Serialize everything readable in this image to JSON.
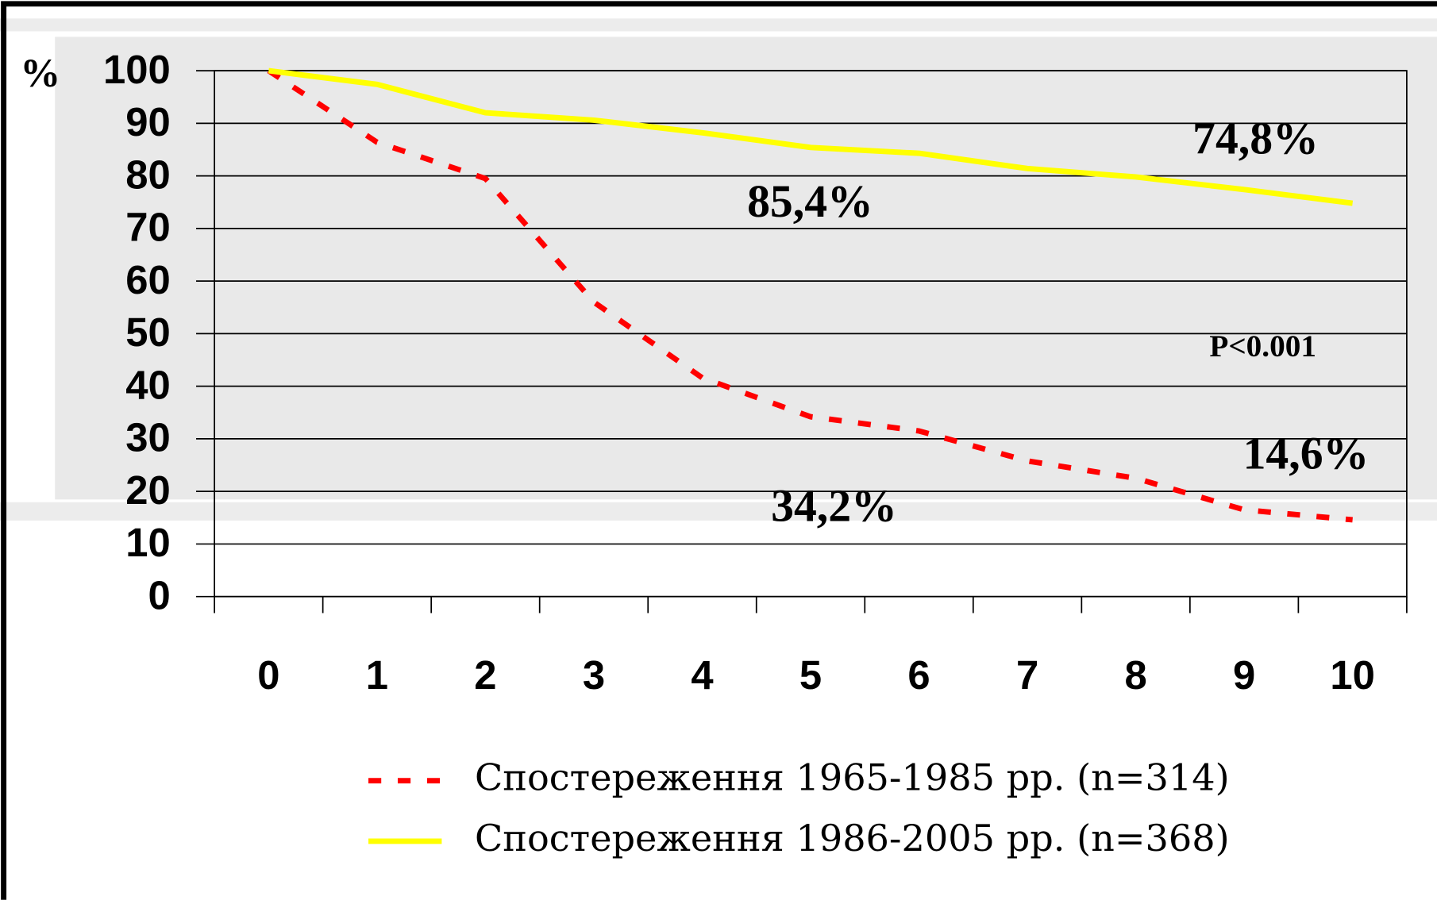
{
  "chart_data": {
    "type": "line",
    "y_label": "%",
    "categories": [
      "0",
      "1",
      "2",
      "3",
      "4",
      "5",
      "6",
      "7",
      "8",
      "9",
      "10"
    ],
    "series": [
      {
        "name": "Спостереження 1965-1985 рр. (n=314)",
        "color": "#ff0000",
        "dashed": true,
        "values": [
          100,
          86.4,
          79.5,
          56,
          41.6,
          34.2,
          31.5,
          25.8,
          22.5,
          16.5,
          14.6
        ]
      },
      {
        "name": "Спостереження 1986-2005 рр. (n=368)",
        "color": "#ffff00",
        "dashed": false,
        "values": [
          100,
          97.4,
          92,
          90.6,
          88.2,
          85.4,
          84.3,
          81.4,
          79.8,
          77.4,
          74.8
        ]
      }
    ],
    "ylim": [
      0,
      100
    ],
    "yticks": [
      0,
      10,
      20,
      30,
      40,
      50,
      60,
      70,
      80,
      90,
      100
    ],
    "grid": true,
    "annotations": [
      "85,4%",
      "74,8%",
      "34,2%",
      "14,6%",
      "P<0.001"
    ]
  }
}
